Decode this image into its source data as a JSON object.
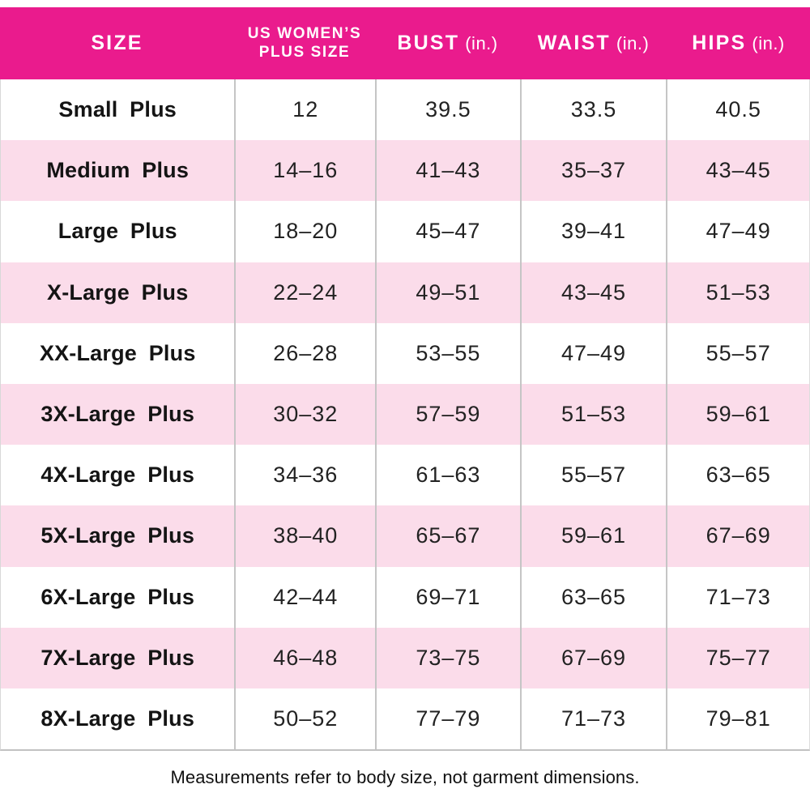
{
  "chart_data": {
    "type": "table",
    "columns": [
      "SIZE",
      "US WOMEN’S PLUS SIZE",
      "BUST (in.)",
      "WAIST (in.)",
      "HIPS (in.)"
    ],
    "rows": [
      [
        "Small Plus",
        "12",
        "39.5",
        "33.5",
        "40.5"
      ],
      [
        "Medium Plus",
        "14–16",
        "41–43",
        "35–37",
        "43–45"
      ],
      [
        "Large Plus",
        "18–20",
        "45–47",
        "39–41",
        "47–49"
      ],
      [
        "X-Large Plus",
        "22–24",
        "49–51",
        "43–45",
        "51–53"
      ],
      [
        "XX-Large Plus",
        "26–28",
        "53–55",
        "47–49",
        "55–57"
      ],
      [
        "3X-Large Plus",
        "30–32",
        "57–59",
        "51–53",
        "59–61"
      ],
      [
        "4X-Large Plus",
        "34–36",
        "61–63",
        "55–57",
        "63–65"
      ],
      [
        "5X-Large Plus",
        "38–40",
        "65–67",
        "59–61",
        "67–69"
      ],
      [
        "6X-Large Plus",
        "42–44",
        "69–71",
        "63–65",
        "71–73"
      ],
      [
        "7X-Large Plus",
        "46–48",
        "73–75",
        "67–69",
        "75–77"
      ],
      [
        "8X-Large Plus",
        "50–52",
        "77–79",
        "71–73",
        "79–81"
      ]
    ],
    "footnote": "Measurements refer to body size, not garment dimensions.",
    "layout_hints": {
      "alternating_row_shading": true,
      "header_full_bleed": true
    }
  },
  "header": {
    "size": "SIZE",
    "us_plus_line1": "US WOMEN’S",
    "us_plus_line2": "PLUS SIZE",
    "bust": "BUST",
    "bust_unit": "(in.)",
    "waist": "WAIST",
    "waist_unit": "(in.)",
    "hips": "HIPS",
    "hips_unit": "(in.)"
  },
  "colors": {
    "header_bg": "#EA1B8D",
    "header_text": "#FFFFFF",
    "row_white": "#FFFFFF",
    "row_pink": "#FBDCEA",
    "grid_line": "#C5C5C5",
    "body_text": "#1D1D1F"
  }
}
